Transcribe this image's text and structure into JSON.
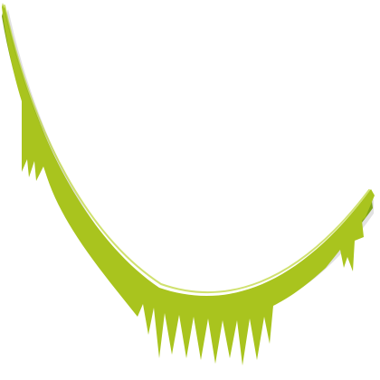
{
  "sprite": {
    "name": "grassy-curved-vine",
    "colors": {
      "fill": "#a9c41e",
      "highlight": "#bcd432",
      "shadow": "#7ea319",
      "drop_shadow": "#c8c8c8"
    }
  }
}
